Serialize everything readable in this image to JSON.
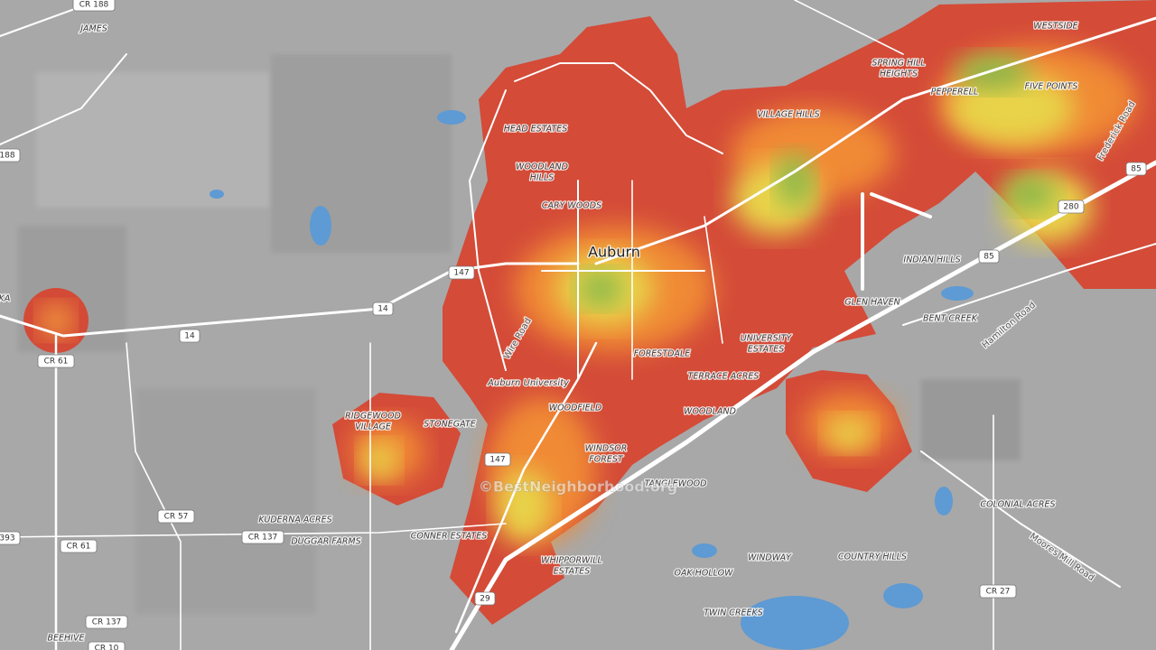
{
  "places": [
    "JAMES",
    "BEEHIVE",
    "KUDERNA ACRES",
    "DUGGAR FARMS",
    "CONNER ESTATES",
    [
      "WHIPPORWILL",
      "ESTATES"
    ],
    "OAK HOLLOW",
    "TWIN CREEKS",
    "WINDWAY",
    "COUNTRY HILLS",
    "COLONIAL ACRES",
    "BENT CREEK",
    "GLEN HAVEN",
    "INDIAN HILLS",
    [
      "UNIVERSITY",
      "ESTATES"
    ],
    "TERRACE ACRES",
    "WOODLAND",
    "FORESTDALE",
    "WOODFIELD",
    [
      "WINDSOR",
      "FOREST"
    ],
    "TANGLEWOOD",
    "STONEGATE",
    [
      "RIDGEWOOD",
      "VILLAGE"
    ],
    "HEAD ESTATES",
    [
      "WOODLAND",
      "HILLS"
    ],
    "CARY WOODS",
    "VILLAGE HILLS",
    [
      "SPRING HILL",
      "HEIGHTS"
    ],
    "PEPPERELL",
    "FIVE POINTS",
    "WESTSIDE"
  ],
  "city": "Auburn",
  "campus": "Auburn University",
  "roads": [
    "Wire Road",
    "Hamilton Road",
    "Frederick Road",
    "Moores Mill Road"
  ],
  "shields": [
    "CR 188",
    "188",
    "CR 61",
    "14",
    "14",
    "147",
    "147",
    "CR 57",
    "CR 137",
    "CR 137",
    "393",
    "CR 61",
    "CR 27",
    "29",
    "85",
    "85",
    "280",
    "CR 10"
  ],
  "partial_label": "KA",
  "watermark": "©BestNeighborhood.org"
}
